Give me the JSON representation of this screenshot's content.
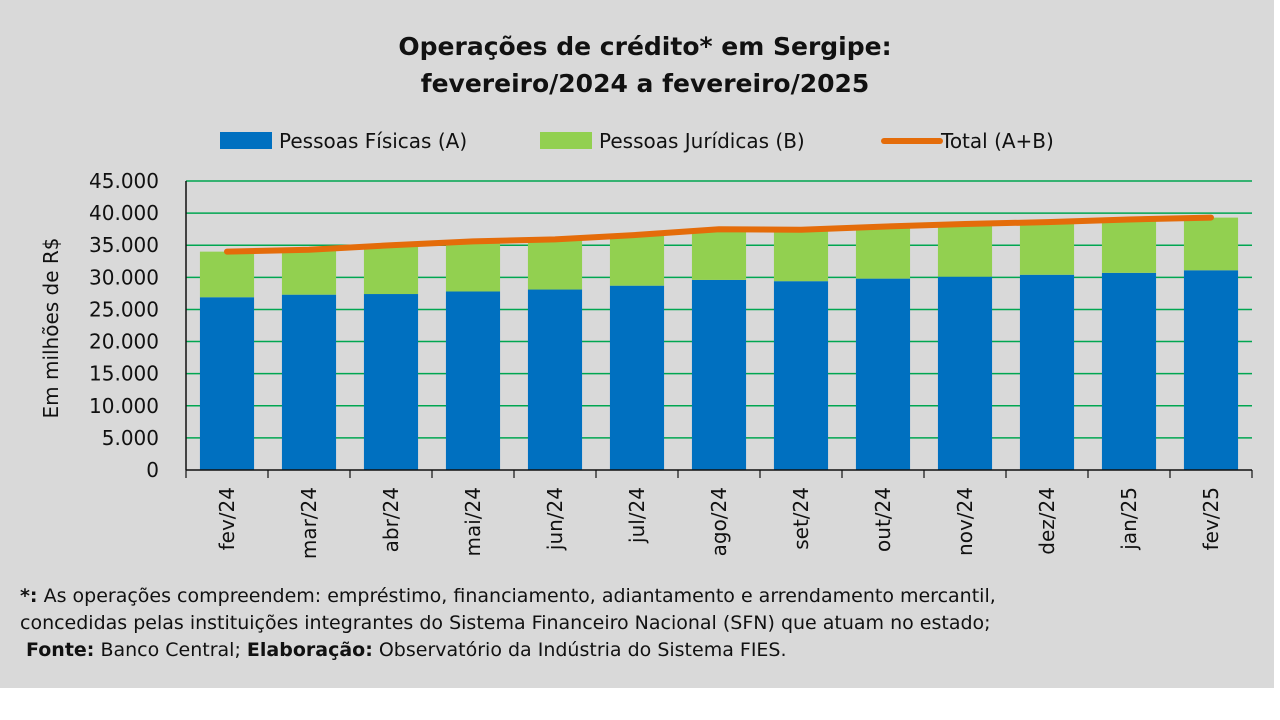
{
  "chart_data": {
    "type": "bar",
    "stacked": true,
    "title_line1": "Operações de crédito* em Sergipe:",
    "title_line2": "fevereiro/2024 a fevereiro/2025",
    "ylabel": "Em milhões de R$",
    "ylim": [
      0,
      45000
    ],
    "yticks": [
      0,
      5000,
      10000,
      15000,
      20000,
      25000,
      30000,
      35000,
      40000,
      45000
    ],
    "ytick_labels": [
      "0",
      "5.000",
      "10.000",
      "15.000",
      "20.000",
      "25.000",
      "30.000",
      "35.000",
      "40.000",
      "45.000"
    ],
    "grid": true,
    "legend_position": "top",
    "categories": [
      "fev/24",
      "mar/24",
      "abr/24",
      "mai/24",
      "jun/24",
      "jul/24",
      "ago/24",
      "set/24",
      "out/24",
      "nov/24",
      "dez/24",
      "jan/25",
      "fev/25"
    ],
    "series": [
      {
        "name": "Pessoas Físicas (A)",
        "kind": "bar",
        "color": "#0070c0",
        "values": [
          26900,
          27300,
          27400,
          27800,
          28100,
          28700,
          29600,
          29400,
          29800,
          30100,
          30400,
          30700,
          31100
        ]
      },
      {
        "name": "Pessoas Jurídicas (B)",
        "kind": "bar",
        "color": "#92d050",
        "values": [
          7100,
          7000,
          7600,
          7800,
          7800,
          7900,
          7900,
          8000,
          8100,
          8200,
          8200,
          8300,
          8200
        ]
      },
      {
        "name": "Total (A+B)",
        "kind": "line",
        "color": "#e46c0a",
        "values": [
          34000,
          34300,
          35000,
          35600,
          35900,
          36600,
          37500,
          37400,
          37900,
          38300,
          38600,
          39000,
          39300
        ]
      }
    ]
  },
  "footnote": {
    "line1_mark": "*:",
    "line1_text": " As operações compreendem: empréstimo, financiamento, adiantamento e arrendamento mercantil,",
    "line2_text": "concedidas pelas instituições integrantes do Sistema Financeiro Nacional (SFN) que atuam no estado;",
    "source_label": "Fonte:",
    "source_text": " Banco Central; ",
    "author_label": "Elaboração:",
    "author_text": "  Observatório da Indústria do Sistema FIES."
  }
}
